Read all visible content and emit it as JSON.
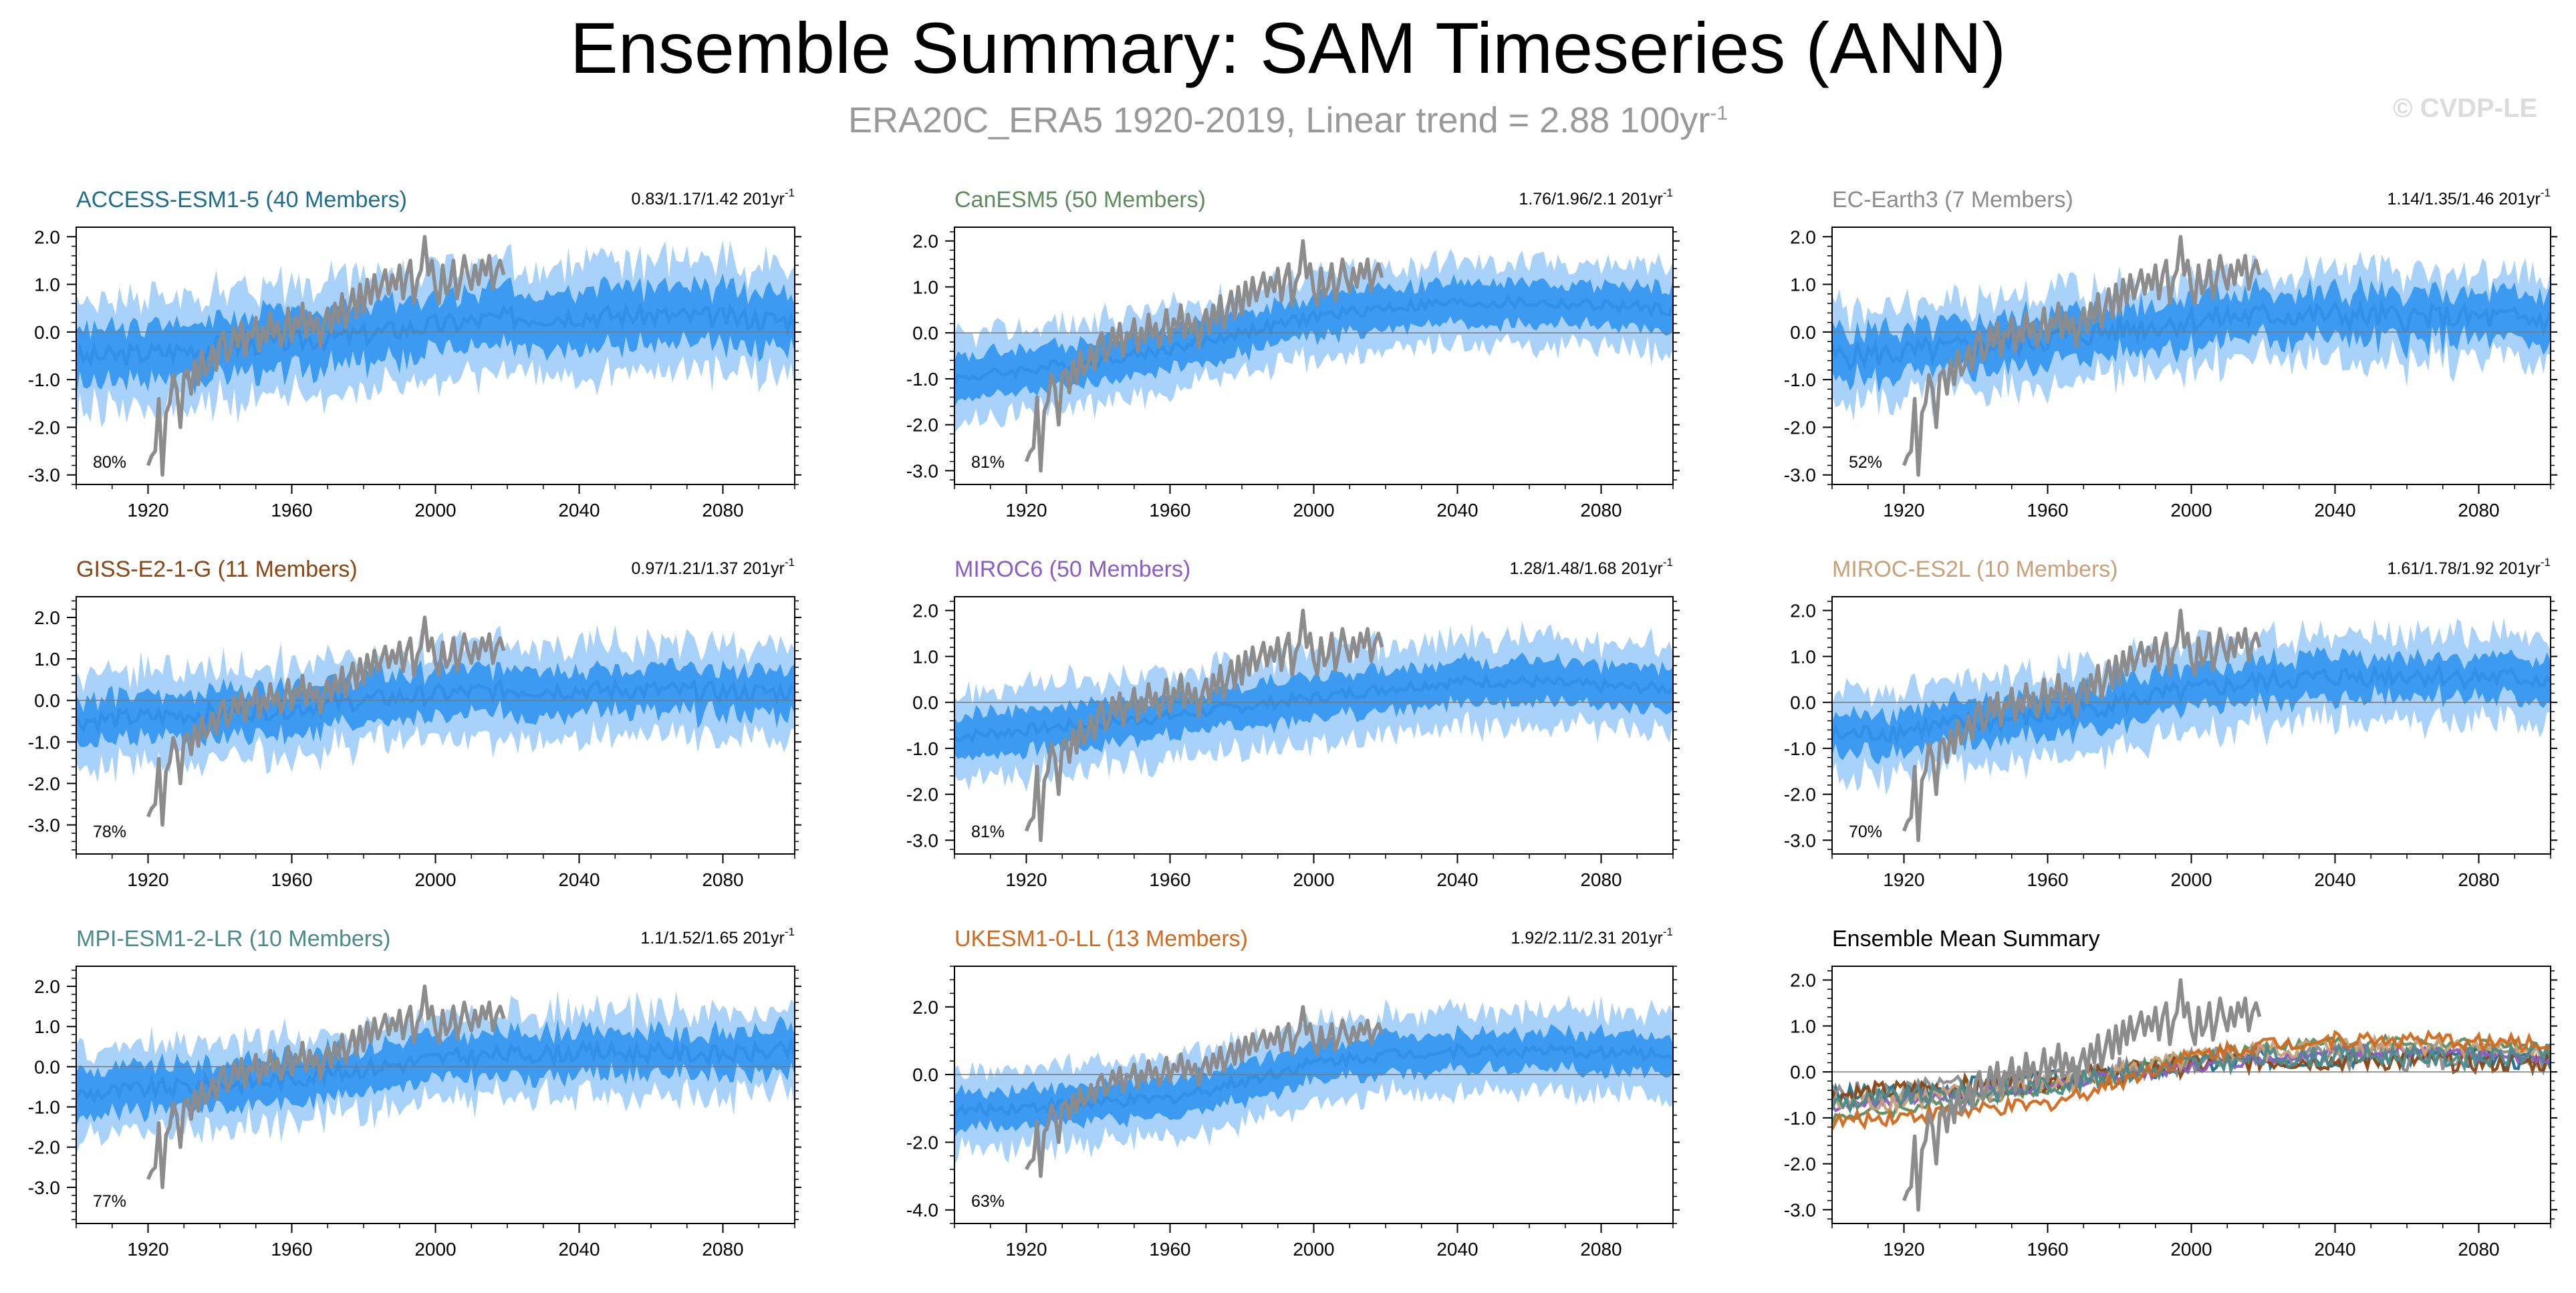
{
  "title": "Ensemble Summary: SAM Timeseries (ANN)",
  "subtitle": {
    "text": "ERA20C_ERA5 1920-2019, Linear trend = 2.88 100yr",
    "superscript": "-1"
  },
  "watermark": "© CVDP-LE",
  "colors": {
    "band_outer": "#a9d2fb",
    "band_inner": "#3c9af0",
    "ensemble_mean": "#3390e8",
    "observations": "#8c8c8c"
  },
  "chart_data": [
    {
      "type": "area",
      "title": "ACCESS-ESM1-5 (40 Members)",
      "title_color": "#1f6e8c",
      "trend_text": "0.83/1.17/1.42 201yr",
      "trend_superscript": "-1",
      "percent_label": "80%",
      "xlim": [
        1900,
        2100
      ],
      "ylim": [
        -3.2,
        2.2
      ],
      "x_ticks": [
        1920,
        1960,
        2000,
        2040,
        2080
      ],
      "y_ticks": [
        2.0,
        1.0,
        0.0,
        -1.0,
        -2.0,
        -3.0
      ],
      "y_tick_labels": [
        "2.0",
        "1.0",
        "0.0",
        "-1.0",
        "-2.0",
        "-3.0"
      ],
      "ensemble_mean": [
        [
          1900,
          -0.55
        ],
        [
          1920,
          -0.45
        ],
        [
          1940,
          -0.3
        ],
        [
          1960,
          -0.2
        ],
        [
          1980,
          -0.05
        ],
        [
          2000,
          0.15
        ],
        [
          2020,
          0.3
        ],
        [
          2040,
          0.35
        ],
        [
          2060,
          0.35
        ],
        [
          2080,
          0.3
        ],
        [
          2100,
          0.25
        ]
      ],
      "inner_halfwidth": 0.6,
      "outer_halfwidth": 1.15,
      "variability": 0.45
    },
    {
      "type": "area",
      "title": "CanESM5 (50 Members)",
      "title_color": "#5f8c5f",
      "trend_text": "1.76/1.96/2.1 201yr",
      "trend_superscript": "-1",
      "percent_label": "81%",
      "xlim": [
        1900,
        2100
      ],
      "ylim": [
        -3.3,
        2.3
      ],
      "x_ticks": [
        1920,
        1960,
        2000,
        2040,
        2080
      ],
      "y_ticks": [
        2.0,
        1.0,
        0.0,
        -1.0,
        -2.0,
        -3.0
      ],
      "y_tick_labels": [
        "2.0",
        "1.0",
        "0.0",
        "-1.0",
        "-2.0",
        "-3.0"
      ],
      "ensemble_mean": [
        [
          1900,
          -1.0
        ],
        [
          1920,
          -0.8
        ],
        [
          1940,
          -0.6
        ],
        [
          1960,
          -0.35
        ],
        [
          1980,
          0.0
        ],
        [
          2000,
          0.35
        ],
        [
          2020,
          0.55
        ],
        [
          2040,
          0.65
        ],
        [
          2060,
          0.65
        ],
        [
          2080,
          0.6
        ],
        [
          2100,
          0.5
        ]
      ],
      "inner_halfwidth": 0.45,
      "outer_halfwidth": 0.9,
      "variability": 0.25
    },
    {
      "type": "area",
      "title": "EC-Earth3 (7 Members)",
      "title_color": "#8c8c8c",
      "trend_text": "1.14/1.35/1.46 201yr",
      "trend_superscript": "-1",
      "percent_label": "52%",
      "xlim": [
        1900,
        2100
      ],
      "ylim": [
        -3.2,
        2.2
      ],
      "x_ticks": [
        1920,
        1960,
        2000,
        2040,
        2080
      ],
      "y_ticks": [
        2.0,
        1.0,
        0.0,
        -1.0,
        -2.0,
        -3.0
      ],
      "y_tick_labels": [
        "2.0",
        "1.0",
        "0.0",
        "-1.0",
        "-2.0",
        "-3.0"
      ],
      "ensemble_mean": [
        [
          1900,
          -0.5
        ],
        [
          1920,
          -0.45
        ],
        [
          1940,
          -0.3
        ],
        [
          1960,
          -0.15
        ],
        [
          1980,
          0.05
        ],
        [
          2000,
          0.25
        ],
        [
          2020,
          0.35
        ],
        [
          2040,
          0.35
        ],
        [
          2060,
          0.3
        ],
        [
          2080,
          0.3
        ],
        [
          2100,
          0.25
        ]
      ],
      "inner_halfwidth": 0.5,
      "outer_halfwidth": 0.95,
      "variability": 0.55
    },
    {
      "type": "area",
      "title": "GISS-E2-1-G (11 Members)",
      "title_color": "#8b4513",
      "trend_text": "0.97/1.21/1.37 201yr",
      "trend_superscript": "-1",
      "percent_label": "78%",
      "xlim": [
        1900,
        2100
      ],
      "ylim": [
        -3.7,
        2.5
      ],
      "x_ticks": [
        1920,
        1960,
        2000,
        2040,
        2080
      ],
      "y_ticks": [
        2.0,
        1.0,
        0.0,
        -1.0,
        -2.0,
        -3.0
      ],
      "y_tick_labels": [
        "2.0",
        "1.0",
        "0.0",
        "-1.0",
        "-2.0",
        "-3.0"
      ],
      "ensemble_mean": [
        [
          1900,
          -0.5
        ],
        [
          1920,
          -0.4
        ],
        [
          1940,
          -0.3
        ],
        [
          1960,
          -0.2
        ],
        [
          1980,
          0.0
        ],
        [
          2000,
          0.15
        ],
        [
          2020,
          0.25
        ],
        [
          2040,
          0.25
        ],
        [
          2060,
          0.25
        ],
        [
          2080,
          0.2
        ],
        [
          2100,
          0.2
        ]
      ],
      "inner_halfwidth": 0.55,
      "outer_halfwidth": 1.1,
      "variability": 0.45
    },
    {
      "type": "area",
      "title": "MIROC6 (50 Members)",
      "title_color": "#8a5cc6",
      "trend_text": "1.28/1.48/1.68 201yr",
      "trend_superscript": "-1",
      "percent_label": "81%",
      "xlim": [
        1900,
        2100
      ],
      "ylim": [
        -3.3,
        2.3
      ],
      "x_ticks": [
        1920,
        1960,
        2000,
        2040,
        2080
      ],
      "y_ticks": [
        2.0,
        1.0,
        0.0,
        -1.0,
        -2.0,
        -3.0
      ],
      "y_tick_labels": [
        "2.0",
        "1.0",
        "0.0",
        "-1.0",
        "-2.0",
        "-3.0"
      ],
      "ensemble_mean": [
        [
          1900,
          -0.75
        ],
        [
          1920,
          -0.6
        ],
        [
          1940,
          -0.45
        ],
        [
          1960,
          -0.3
        ],
        [
          1980,
          -0.1
        ],
        [
          2000,
          0.1
        ],
        [
          2020,
          0.3
        ],
        [
          2040,
          0.45
        ],
        [
          2060,
          0.45
        ],
        [
          2080,
          0.35
        ],
        [
          2100,
          0.3
        ]
      ],
      "inner_halfwidth": 0.45,
      "outer_halfwidth": 0.95,
      "variability": 0.25
    },
    {
      "type": "area",
      "title": "MIROC-ES2L (10 Members)",
      "title_color": "#c8a078",
      "trend_text": "1.61/1.78/1.92 201yr",
      "trend_superscript": "-1",
      "percent_label": "70%",
      "xlim": [
        1900,
        2100
      ],
      "ylim": [
        -3.3,
        2.3
      ],
      "x_ticks": [
        1920,
        1960,
        2000,
        2040,
        2080
      ],
      "y_ticks": [
        2.0,
        1.0,
        0.0,
        -1.0,
        -2.0,
        -3.0
      ],
      "y_tick_labels": [
        "2.0",
        "1.0",
        "0.0",
        "-1.0",
        "-2.0",
        "-3.0"
      ],
      "ensemble_mean": [
        [
          1900,
          -0.75
        ],
        [
          1920,
          -0.6
        ],
        [
          1940,
          -0.45
        ],
        [
          1960,
          -0.3
        ],
        [
          1980,
          0.0
        ],
        [
          2000,
          0.25
        ],
        [
          2020,
          0.45
        ],
        [
          2040,
          0.55
        ],
        [
          2060,
          0.6
        ],
        [
          2080,
          0.55
        ],
        [
          2100,
          0.5
        ]
      ],
      "inner_halfwidth": 0.45,
      "outer_halfwidth": 0.95,
      "variability": 0.45
    },
    {
      "type": "area",
      "title": "MPI-ESM1-2-LR (10 Members)",
      "title_color": "#4b8b8b",
      "trend_text": "1.1/1.52/1.65 201yr",
      "trend_superscript": "-1",
      "percent_label": "77%",
      "xlim": [
        1900,
        2100
      ],
      "ylim": [
        -3.9,
        2.5
      ],
      "x_ticks": [
        1920,
        1960,
        2000,
        2040,
        2080
      ],
      "y_ticks": [
        2.0,
        1.0,
        0.0,
        -1.0,
        -2.0,
        -3.0
      ],
      "y_tick_labels": [
        "2.0",
        "1.0",
        "0.0",
        "-1.0",
        "-2.0",
        "-3.0"
      ],
      "ensemble_mean": [
        [
          1900,
          -0.7
        ],
        [
          1920,
          -0.55
        ],
        [
          1940,
          -0.45
        ],
        [
          1960,
          -0.3
        ],
        [
          1980,
          -0.05
        ],
        [
          2000,
          0.2
        ],
        [
          2020,
          0.3
        ],
        [
          2040,
          0.35
        ],
        [
          2060,
          0.35
        ],
        [
          2080,
          0.3
        ],
        [
          2100,
          0.4
        ]
      ],
      "inner_halfwidth": 0.55,
      "outer_halfwidth": 1.05,
      "variability": 0.45
    },
    {
      "type": "area",
      "title": "UKESM1-0-LL (13 Members)",
      "title_color": "#d2691e",
      "trend_text": "1.92/2.11/2.31 201yr",
      "trend_superscript": "-1",
      "percent_label": "63%",
      "xlim": [
        1900,
        2100
      ],
      "ylim": [
        -4.4,
        3.2
      ],
      "x_ticks": [
        1920,
        1960,
        2000,
        2040,
        2080
      ],
      "y_ticks": [
        2.0,
        0.0,
        -2.0,
        -4.0
      ],
      "y_tick_labels": [
        "2.0",
        "0.0",
        "-2.0",
        "-4.0"
      ],
      "ensemble_mean": [
        [
          1900,
          -1.1
        ],
        [
          1920,
          -0.95
        ],
        [
          1940,
          -0.85
        ],
        [
          1960,
          -0.7
        ],
        [
          1980,
          -0.2
        ],
        [
          2000,
          0.35
        ],
        [
          2020,
          0.6
        ],
        [
          2040,
          0.7
        ],
        [
          2060,
          0.7
        ],
        [
          2080,
          0.65
        ],
        [
          2100,
          0.6
        ]
      ],
      "inner_halfwidth": 0.55,
      "outer_halfwidth": 1.2,
      "variability": 0.35
    },
    {
      "type": "line",
      "title": "Ensemble Mean Summary",
      "title_color": "#000000",
      "trend_text": "",
      "trend_superscript": "",
      "percent_label": "",
      "xlim": [
        1900,
        2100
      ],
      "ylim": [
        -3.3,
        2.3
      ],
      "x_ticks": [
        1920,
        1960,
        2000,
        2040,
        2080
      ],
      "y_ticks": [
        2.0,
        1.0,
        0.0,
        -1.0,
        -2.0,
        -3.0
      ],
      "y_tick_labels": [
        "2.0",
        "1.0",
        "0.0",
        "-1.0",
        "-2.0",
        "-3.0"
      ],
      "summary_series": [
        {
          "color": "#1f6e8c",
          "source_panel": 0
        },
        {
          "color": "#5f8c5f",
          "source_panel": 1
        },
        {
          "color": "#8c8c8c",
          "source_panel": 2
        },
        {
          "color": "#8b4513",
          "source_panel": 3
        },
        {
          "color": "#8a5cc6",
          "source_panel": 4
        },
        {
          "color": "#c8a078",
          "source_panel": 5
        },
        {
          "color": "#4b8b8b",
          "source_panel": 6
        },
        {
          "color": "#d2691e",
          "source_panel": 7
        }
      ]
    }
  ],
  "observations": {
    "years": [
      1920,
      2019
    ],
    "points": [
      [
        1920,
        -2.8
      ],
      [
        1921,
        -2.6
      ],
      [
        1922,
        -2.5
      ],
      [
        1923,
        -1.4
      ],
      [
        1924,
        -3.0
      ],
      [
        1925,
        -1.7
      ],
      [
        1926,
        -1.5
      ],
      [
        1927,
        -0.9
      ],
      [
        1928,
        -1.2
      ],
      [
        1929,
        -2.0
      ],
      [
        1930,
        -0.9
      ],
      [
        1931,
        -0.8
      ],
      [
        1932,
        -1.3
      ],
      [
        1933,
        -0.6
      ],
      [
        1934,
        -1.1
      ],
      [
        1935,
        -0.4
      ],
      [
        1936,
        -0.9
      ],
      [
        1937,
        -0.7
      ],
      [
        1938,
        -0.3
      ],
      [
        1939,
        -0.8
      ],
      [
        1940,
        -0.2
      ],
      [
        1941,
        0.0
      ],
      [
        1942,
        -0.6
      ],
      [
        1943,
        -0.4
      ],
      [
        1944,
        0.1
      ],
      [
        1945,
        -0.3
      ],
      [
        1946,
        0.2
      ],
      [
        1947,
        -0.5
      ],
      [
        1948,
        0.0
      ],
      [
        1949,
        -0.1
      ],
      [
        1950,
        0.3
      ],
      [
        1951,
        -0.4
      ],
      [
        1952,
        0.1
      ],
      [
        1953,
        -0.2
      ],
      [
        1954,
        0.4
      ],
      [
        1955,
        -0.1
      ],
      [
        1956,
        0.2
      ],
      [
        1957,
        -0.3
      ],
      [
        1958,
        0.0
      ],
      [
        1959,
        0.5
      ],
      [
        1960,
        -0.2
      ],
      [
        1961,
        0.3
      ],
      [
        1962,
        0.1
      ],
      [
        1963,
        0.6
      ],
      [
        1964,
        -0.1
      ],
      [
        1965,
        0.4
      ],
      [
        1966,
        0.0
      ],
      [
        1967,
        0.3
      ],
      [
        1968,
        -0.3
      ],
      [
        1969,
        0.2
      ],
      [
        1970,
        0.5
      ],
      [
        1971,
        0.0
      ],
      [
        1972,
        0.6
      ],
      [
        1973,
        0.2
      ],
      [
        1974,
        0.8
      ],
      [
        1975,
        0.1
      ],
      [
        1976,
        0.5
      ],
      [
        1977,
        0.9
      ],
      [
        1978,
        0.3
      ],
      [
        1979,
        1.0
      ],
      [
        1980,
        0.4
      ],
      [
        1981,
        1.1
      ],
      [
        1982,
        0.6
      ],
      [
        1983,
        1.2
      ],
      [
        1984,
        0.7
      ],
      [
        1985,
        1.0
      ],
      [
        1986,
        1.3
      ],
      [
        1987,
        0.8
      ],
      [
        1988,
        1.2
      ],
      [
        1989,
        0.9
      ],
      [
        1990,
        1.4
      ],
      [
        1991,
        0.7
      ],
      [
        1992,
        1.2
      ],
      [
        1993,
        1.5
      ],
      [
        1994,
        0.6
      ],
      [
        1995,
        1.1
      ],
      [
        1996,
        1.3
      ],
      [
        1997,
        2.0
      ],
      [
        1998,
        1.2
      ],
      [
        1999,
        1.5
      ],
      [
        2000,
        0.9
      ],
      [
        2001,
        0.6
      ],
      [
        2002,
        1.4
      ],
      [
        2003,
        0.8
      ],
      [
        2004,
        1.0
      ],
      [
        2005,
        1.5
      ],
      [
        2006,
        0.7
      ],
      [
        2007,
        1.1
      ],
      [
        2008,
        1.6
      ],
      [
        2009,
        1.2
      ],
      [
        2010,
        0.9
      ],
      [
        2011,
        1.4
      ],
      [
        2012,
        1.0
      ],
      [
        2013,
        1.5
      ],
      [
        2014,
        1.2
      ],
      [
        2015,
        1.6
      ],
      [
        2016,
        0.9
      ],
      [
        2017,
        1.3
      ],
      [
        2018,
        1.5
      ],
      [
        2019,
        1.2
      ]
    ]
  }
}
